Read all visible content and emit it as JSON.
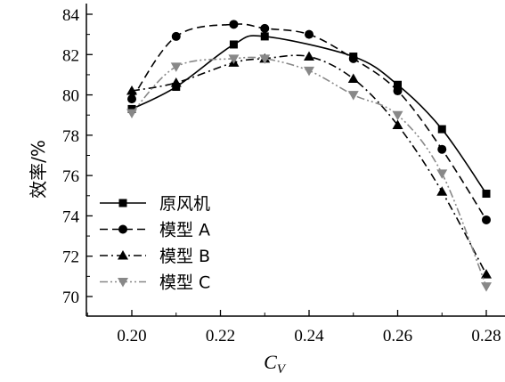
{
  "chart_data": {
    "type": "line",
    "xlabel": "C",
    "xlabel_sub": "V",
    "ylabel": "效率/%",
    "xlim": [
      0.19,
      0.28
    ],
    "ylim": [
      69,
      84
    ],
    "xticks": [
      0.2,
      0.22,
      0.24,
      0.26,
      0.28
    ],
    "xtick_labels": [
      "0.20",
      "0.22",
      "0.24",
      "0.26",
      "0.28"
    ],
    "yticks": [
      70,
      72,
      74,
      76,
      78,
      80,
      82,
      84
    ],
    "ytick_labels": [
      "70",
      "72",
      "74",
      "76",
      "78",
      "80",
      "82",
      "84"
    ],
    "legend_position": "bottom-left",
    "grid": false,
    "series": [
      {
        "name": "原风机",
        "marker": "square",
        "line": "solid",
        "color": "#000000",
        "x": [
          0.2,
          0.21,
          0.223,
          0.23,
          0.25,
          0.26,
          0.27,
          0.28
        ],
        "y": [
          79.3,
          80.4,
          82.5,
          82.9,
          81.9,
          80.5,
          78.3,
          75.1
        ]
      },
      {
        "name": "模型 A",
        "marker": "circle",
        "line": "dashed",
        "color": "#000000",
        "x": [
          0.2,
          0.21,
          0.223,
          0.23,
          0.24,
          0.25,
          0.26,
          0.27,
          0.28
        ],
        "y": [
          79.8,
          82.9,
          83.5,
          83.3,
          83.0,
          81.8,
          80.2,
          77.3,
          73.8
        ]
      },
      {
        "name": "模型 B",
        "marker": "triangle-up",
        "line": "dashdot",
        "color": "#000000",
        "x": [
          0.2,
          0.21,
          0.223,
          0.23,
          0.24,
          0.25,
          0.26,
          0.27,
          0.28
        ],
        "y": [
          80.2,
          80.6,
          81.6,
          81.8,
          81.9,
          80.8,
          78.5,
          75.2,
          71.1
        ]
      },
      {
        "name": "模型 C",
        "marker": "triangle-down",
        "line": "dashdotdot",
        "color": "#888888",
        "x": [
          0.2,
          0.21,
          0.223,
          0.23,
          0.24,
          0.25,
          0.26,
          0.27,
          0.28
        ],
        "y": [
          79.1,
          81.4,
          81.8,
          81.8,
          81.2,
          80.0,
          79.0,
          76.1,
          70.5
        ]
      }
    ]
  }
}
